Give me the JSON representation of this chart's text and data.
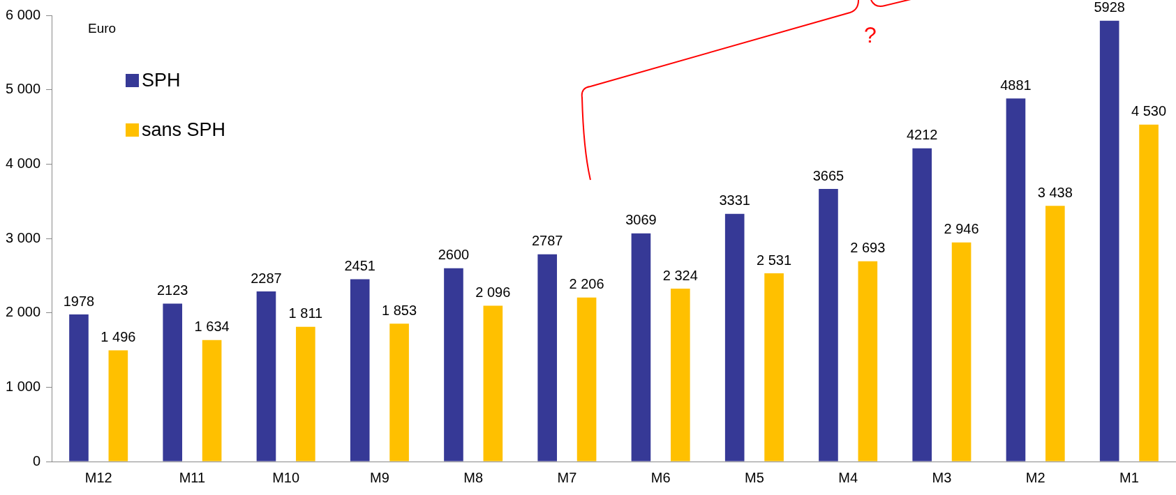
{
  "chart_data": {
    "type": "bar",
    "ylabel": "Euro",
    "categories": [
      "M12",
      "M11",
      "M10",
      "M9",
      "M8",
      "M7",
      "M6",
      "M5",
      "M4",
      "M3",
      "M2",
      "M1"
    ],
    "series": [
      {
        "name": "SPH",
        "color": "#363996",
        "values": [
          1978,
          2123,
          2287,
          2451,
          2600,
          2787,
          3069,
          3331,
          3665,
          4212,
          4881,
          5928
        ],
        "value_labels": [
          "1978",
          "2123",
          "2287",
          "2451",
          "2600",
          "2787",
          "3069",
          "3331",
          "3665",
          "4212",
          "4881",
          "5928"
        ]
      },
      {
        "name": "sans SPH",
        "color": "#ffc000",
        "values": [
          1496,
          1634,
          1811,
          1853,
          2096,
          2206,
          2324,
          2531,
          2693,
          2946,
          3438,
          4530
        ],
        "value_labels": [
          "1 496",
          "1 634",
          "1 811",
          "1 853",
          "2 096",
          "2 206",
          "2 324",
          "2 531",
          "2 693",
          "2 946",
          "3 438",
          "4 530"
        ]
      }
    ],
    "ylim": [
      0,
      6000
    ],
    "yticks": [
      {
        "value": 0,
        "label": "0"
      },
      {
        "value": 1000,
        "label": "1 000"
      },
      {
        "value": 2000,
        "label": "2 000"
      },
      {
        "value": 3000,
        "label": "3 000"
      },
      {
        "value": 4000,
        "label": "4 000"
      },
      {
        "value": 5000,
        "label": "5 000"
      },
      {
        "value": 6000,
        "label": "6 000"
      }
    ],
    "grid": false,
    "legend": "top left",
    "annotations": [
      "?"
    ]
  }
}
